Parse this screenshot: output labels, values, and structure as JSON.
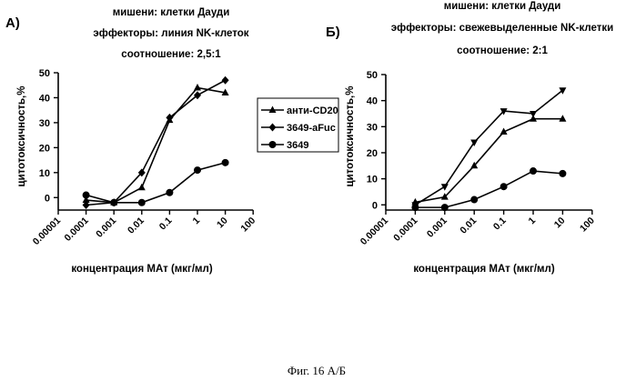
{
  "figure_caption": "Фиг. 16 А/Б",
  "legend": {
    "entries": [
      {
        "label": "анти-CD20",
        "marker": "triangle-up"
      },
      {
        "label": "3649-aFuc",
        "marker": "diamond"
      },
      {
        "label": "3649",
        "marker": "circle"
      }
    ]
  },
  "chart_data": [
    {
      "panel": "А)",
      "type": "line",
      "title_lines": [
        "мишени: клетки Дауди",
        "эффекторы: линия NK-клеток",
        "соотношение: 2,5:1"
      ],
      "xlabel": "концентрация МАт (мкг/мл)",
      "ylabel": "цитотоксичность,%",
      "xscale": "log",
      "xlim": [
        1e-05,
        100
      ],
      "ylim": [
        -5,
        50
      ],
      "x_ticks": [
        "0.00001",
        "0.0001",
        "0.001",
        "0.01",
        "0.1",
        "1",
        "10",
        "100"
      ],
      "y_ticks": [
        0,
        10,
        20,
        30,
        40,
        50
      ],
      "grid": false,
      "series": [
        {
          "name": "анти-CD20",
          "marker": "triangle-up",
          "x": [
            0.0001,
            0.001,
            0.01,
            0.1,
            1,
            10
          ],
          "y": [
            -1,
            -2,
            4,
            31,
            44,
            42
          ]
        },
        {
          "name": "3649-aFuc",
          "marker": "diamond",
          "x": [
            0.0001,
            0.001,
            0.01,
            0.1,
            1,
            10
          ],
          "y": [
            -3,
            -2,
            10,
            32,
            41,
            47
          ]
        },
        {
          "name": "3649",
          "marker": "circle",
          "x": [
            0.0001,
            0.001,
            0.01,
            0.1,
            1,
            10
          ],
          "y": [
            1,
            -2,
            -2,
            2,
            11,
            14
          ]
        }
      ]
    },
    {
      "panel": "Б)",
      "type": "line",
      "title_lines": [
        "мишени: клетки Дауди",
        "эффекторы: свежевыделенные NK-клетки",
        "соотношение: 2:1"
      ],
      "xlabel": "концентрация МАт (мкг/мл)",
      "ylabel": "цитотоксичность,%",
      "xscale": "log",
      "xlim": [
        1e-05,
        100
      ],
      "ylim": [
        -2,
        50
      ],
      "x_ticks": [
        "0.00001",
        "0.0001",
        "0.001",
        "0.01",
        "0.1",
        "1",
        "10",
        "100"
      ],
      "y_ticks": [
        0,
        10,
        20,
        30,
        40,
        50
      ],
      "grid": false,
      "series": [
        {
          "name": "series-triangle-down",
          "marker": "triangle-down",
          "x": [
            0.0001,
            0.001,
            0.01,
            0.1,
            1,
            10
          ],
          "y": [
            0,
            7,
            24,
            36,
            35,
            44
          ]
        },
        {
          "name": "series-triangle-up",
          "marker": "triangle-up",
          "x": [
            0.0001,
            0.001,
            0.01,
            0.1,
            1,
            10
          ],
          "y": [
            1,
            3,
            15,
            28,
            33,
            33
          ]
        },
        {
          "name": "series-circle",
          "marker": "circle",
          "x": [
            0.0001,
            0.001,
            0.01,
            0.1,
            1,
            10
          ],
          "y": [
            -1,
            -1,
            2,
            7,
            13,
            12
          ]
        }
      ]
    }
  ]
}
